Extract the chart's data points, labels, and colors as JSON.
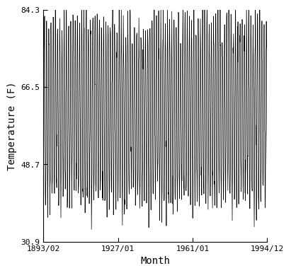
{
  "title": "",
  "xlabel": "Month",
  "ylabel": "Temperature (F)",
  "x_tick_labels": [
    "1893/02",
    "1927/01",
    "1961/01",
    "1994/12"
  ],
  "y_tick_labels": [
    "30.9",
    "48.7",
    "66.5",
    "84.3"
  ],
  "y_ticks": [
    30.9,
    48.7,
    66.5,
    84.3
  ],
  "ylim": [
    30.9,
    84.3
  ],
  "start_year": 1893,
  "start_month": 2,
  "end_year": 1994,
  "end_month": 12,
  "line_color": "#000000",
  "line_width": 0.5,
  "bg_color": "#ffffff",
  "mean_temp": 60.75,
  "amplitude": 20.0,
  "noise_std": 3.0,
  "x_ticks": [
    1893.0833,
    1927.0,
    1961.0,
    1994.9167
  ]
}
